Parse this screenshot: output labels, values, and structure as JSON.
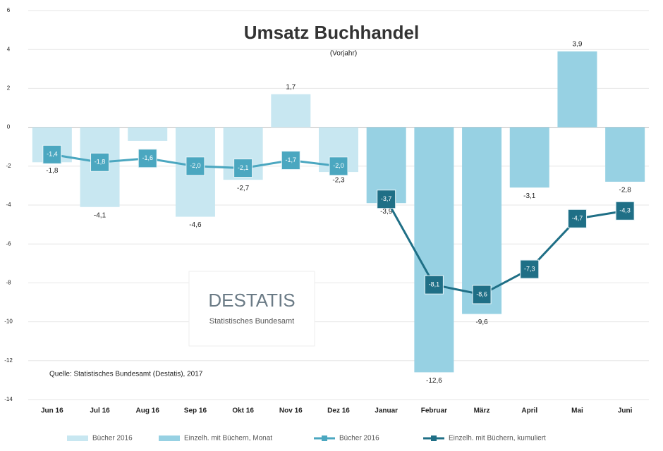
{
  "chart_data": {
    "type": "bar",
    "title": "Umsatz Buchhandel",
    "subtitle": "(Vorjahr)",
    "categories": [
      "Jun 16",
      "Jul 16",
      "Aug 16",
      "Sep 16",
      "Okt 16",
      "Nov 16",
      "Dez 16",
      "Januar",
      "Februar",
      "März",
      "April",
      "Mai",
      "Juni"
    ],
    "series": [
      {
        "name": "Bücher 2016",
        "kind": "bar",
        "color": "#c8e7f1",
        "values": [
          -1.8,
          -4.1,
          -0.7,
          -4.6,
          -2.7,
          1.7,
          -2.3,
          null,
          null,
          null,
          null,
          null,
          null
        ],
        "value_labels": [
          "-1,8",
          "-4,1",
          null,
          "-4,6",
          "-2,7",
          "1,7",
          "-2,3",
          null,
          null,
          null,
          null,
          null,
          null
        ]
      },
      {
        "name": "Einzelh. mit Büchern, Monat",
        "kind": "bar",
        "color": "#97d1e3",
        "values": [
          null,
          null,
          null,
          null,
          null,
          null,
          null,
          -3.9,
          -12.6,
          -9.6,
          -3.1,
          3.9,
          -2.8
        ],
        "value_labels": [
          null,
          null,
          null,
          null,
          null,
          null,
          null,
          "-3,9",
          "-12,6",
          "-9,6",
          "-3,1",
          "3,9",
          "-2,8"
        ]
      },
      {
        "name": "Bücher 2016",
        "kind": "line",
        "color": "#4ba7c0",
        "values": [
          -1.4,
          -1.8,
          -1.6,
          -2.0,
          -2.1,
          -1.7,
          -2.0,
          null,
          null,
          null,
          null,
          null,
          null
        ],
        "value_labels": [
          "-1,4",
          "-1,8",
          "-1,6",
          "-2,0",
          "-2,1",
          "-1,7",
          "-2,0",
          null,
          null,
          null,
          null,
          null,
          null
        ]
      },
      {
        "name": "Einzelh. mit Büchern, kumuliert",
        "kind": "line",
        "color": "#1f6f86",
        "values": [
          null,
          null,
          null,
          null,
          null,
          null,
          null,
          -3.7,
          -8.1,
          -8.6,
          -7.3,
          -4.7,
          -4.3
        ],
        "value_labels": [
          null,
          null,
          null,
          null,
          null,
          null,
          null,
          "-3,7",
          "-8,1",
          "-8,6",
          "-7,3",
          "-4,7",
          "-4,3"
        ]
      }
    ],
    "ylim": [
      -14,
      6
    ],
    "yticks": [
      6,
      4,
      2,
      0,
      -2,
      -4,
      -6,
      -8,
      -10,
      -12,
      -14
    ],
    "grid": true,
    "source": "Quelle: Statistisches Bundesamt (Destatis), 2017",
    "logo": {
      "name": "DESTATIS",
      "subtitle": "Statistisches Bundesamt"
    }
  }
}
